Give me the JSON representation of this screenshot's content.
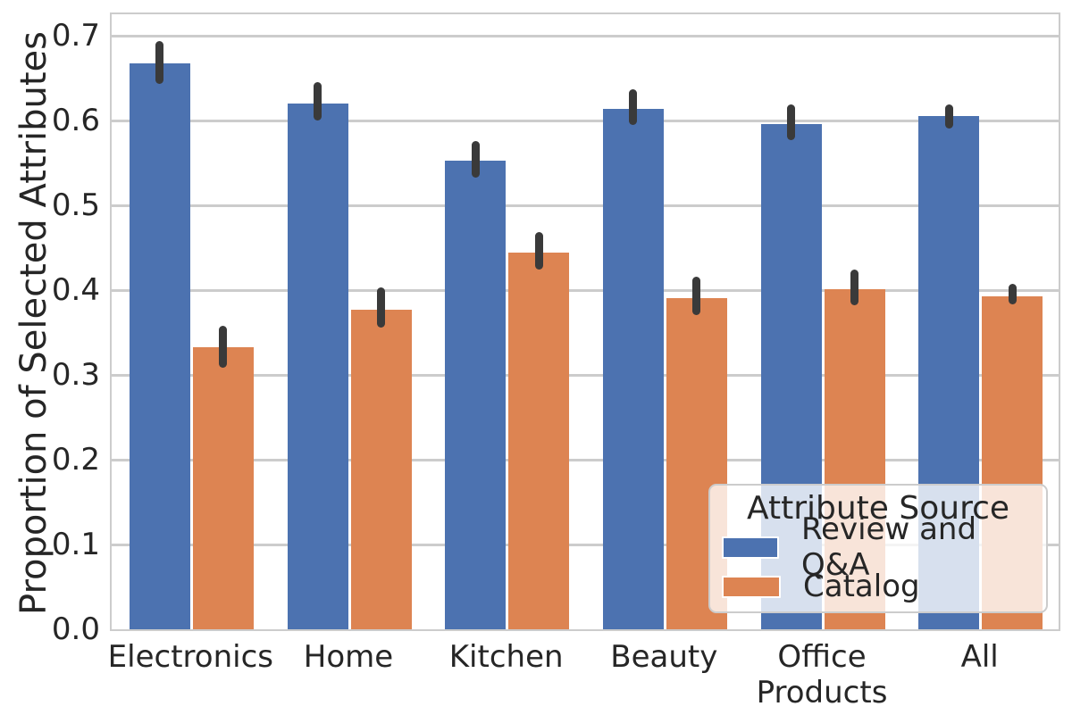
{
  "chart_data": {
    "type": "bar",
    "title": "",
    "xlabel": "",
    "ylabel": "Proportion of Selected Attributes",
    "categories": [
      "Electronics",
      "Home",
      "Kitchen",
      "Beauty",
      "Office\nProducts",
      "All"
    ],
    "yticks": [
      "0.0",
      "0.1",
      "0.2",
      "0.3",
      "0.4",
      "0.5",
      "0.6",
      "0.7"
    ],
    "ytick_values": [
      0.0,
      0.1,
      0.2,
      0.3,
      0.4,
      0.5,
      0.6,
      0.7
    ],
    "ylim": [
      0,
      0.725
    ],
    "grid": "horizontal",
    "series": [
      {
        "name": "Review and Q&A",
        "color": "#4C72B0",
        "values": [
          0.667,
          0.62,
          0.553,
          0.614,
          0.596,
          0.605
        ],
        "error_intervals": [
          [
            0.643,
            0.694
          ],
          [
            0.6,
            0.645
          ],
          [
            0.533,
            0.576
          ],
          [
            0.595,
            0.637
          ],
          [
            0.577,
            0.619
          ],
          [
            0.591,
            0.619
          ]
        ]
      },
      {
        "name": "Catalog",
        "color": "#DD8452",
        "values": [
          0.333,
          0.377,
          0.444,
          0.391,
          0.401,
          0.393
        ],
        "error_intervals": [
          [
            0.308,
            0.358
          ],
          [
            0.356,
            0.403
          ],
          [
            0.424,
            0.468
          ],
          [
            0.371,
            0.416
          ],
          [
            0.382,
            0.424
          ],
          [
            0.383,
            0.407
          ]
        ]
      }
    ],
    "legend": {
      "title": "Attribute Source",
      "entries": [
        "Review and Q&A",
        "Catalog"
      ],
      "position": "lower-right"
    },
    "colors": {
      "grid": "#cccccc",
      "spine": "#cccccc",
      "error_bar": "#3a3a3a",
      "text": "#262626",
      "background": "#ffffff"
    }
  }
}
